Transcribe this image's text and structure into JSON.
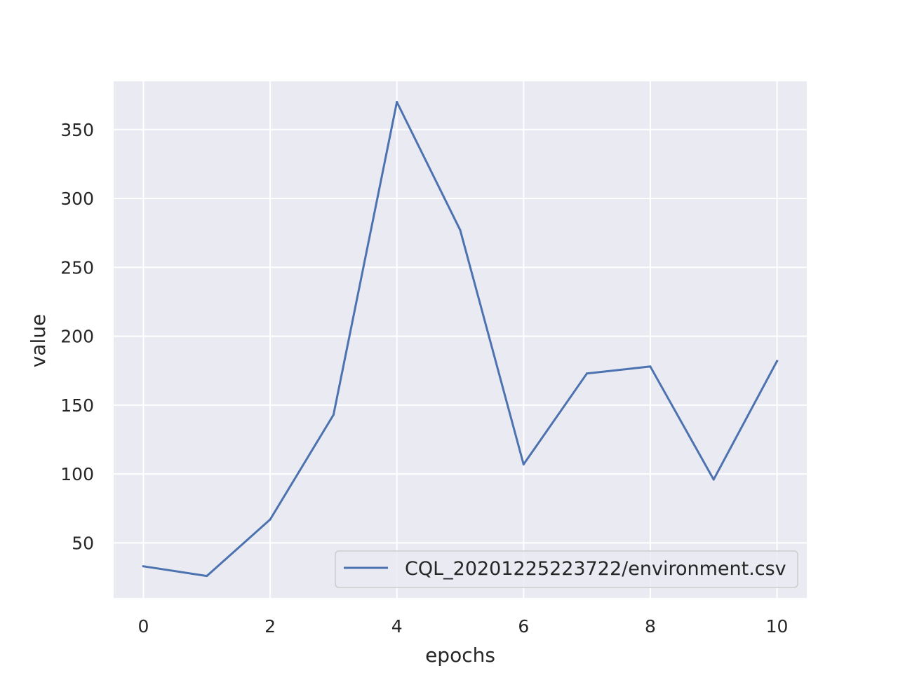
{
  "chart_data": {
    "type": "line",
    "xlabel": "epochs",
    "ylabel": "value",
    "xlim": [
      -0.47,
      10.47
    ],
    "ylim": [
      10,
      385
    ],
    "x_ticks": [
      0,
      2,
      4,
      6,
      8,
      10
    ],
    "y_ticks": [
      50,
      100,
      150,
      200,
      250,
      300,
      350
    ],
    "grid": true,
    "legend_position": "lower-right",
    "background_color": "#eaeaf2",
    "grid_color": "#ffffff",
    "series": [
      {
        "name": "CQL_20201225223722/environment.csv",
        "color": "#4c72b0",
        "x": [
          0,
          1,
          2,
          3,
          4,
          5,
          6,
          7,
          8,
          9,
          10
        ],
        "values": [
          33,
          26,
          67,
          143,
          370,
          277,
          107,
          173,
          178,
          96,
          182
        ]
      }
    ]
  }
}
